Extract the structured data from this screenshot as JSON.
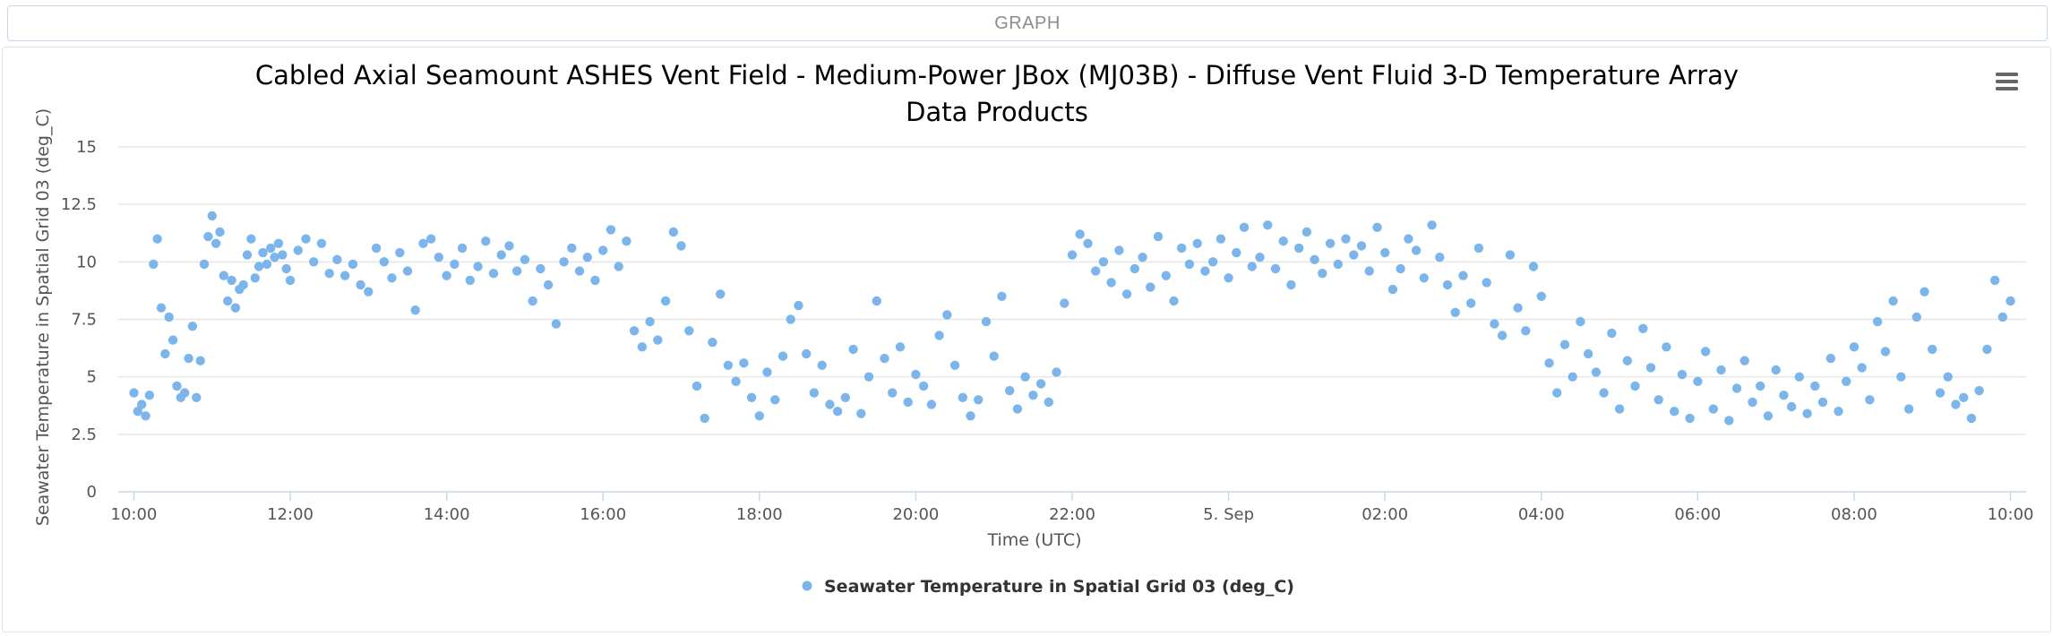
{
  "panel": {
    "header_label": "GRAPH"
  },
  "menu": {
    "icon": "hamburger-menu-icon"
  },
  "colors": {
    "series": "#7cb5ec",
    "grid": "#e6e6e6",
    "axis": "#ccd6eb"
  },
  "chart_data": {
    "type": "scatter",
    "title_line1": "Cabled Axial Seamount ASHES Vent Field - Medium-Power JBox (MJ03B) - Diffuse Vent Fluid 3-D Temperature Array",
    "title_line2": "Data Products",
    "xlabel": "Time (UTC)",
    "ylabel": "Seawater Temperature in Spatial Grid 03 (deg_C)",
    "ylim": [
      0,
      15
    ],
    "y_ticks": [
      "0",
      "2.5",
      "5",
      "7.5",
      "10",
      "12.5",
      "15"
    ],
    "y_tick_values": [
      0,
      2.5,
      5,
      7.5,
      10,
      12.5,
      15
    ],
    "xlim_hours": [
      9.8,
      34.2
    ],
    "x_ticks": [
      "10:00",
      "12:00",
      "14:00",
      "16:00",
      "18:00",
      "20:00",
      "22:00",
      "5. Sep",
      "02:00",
      "04:00",
      "06:00",
      "08:00",
      "10:00"
    ],
    "x_tick_hours": [
      10,
      12,
      14,
      16,
      18,
      20,
      22,
      24,
      26,
      28,
      30,
      32,
      34
    ],
    "grid": true,
    "legend_position": "bottom-center",
    "series": [
      {
        "name": "Seawater Temperature in Spatial Grid 03 (deg_C)",
        "color": "#7cb5ec",
        "points": [
          [
            10.0,
            4.3
          ],
          [
            10.05,
            3.5
          ],
          [
            10.1,
            3.8
          ],
          [
            10.15,
            3.3
          ],
          [
            10.2,
            4.2
          ],
          [
            10.25,
            9.9
          ],
          [
            10.3,
            11.0
          ],
          [
            10.35,
            8.0
          ],
          [
            10.4,
            6.0
          ],
          [
            10.45,
            7.6
          ],
          [
            10.5,
            6.6
          ],
          [
            10.55,
            4.6
          ],
          [
            10.6,
            4.1
          ],
          [
            10.65,
            4.3
          ],
          [
            10.7,
            5.8
          ],
          [
            10.75,
            7.2
          ],
          [
            10.8,
            4.1
          ],
          [
            10.85,
            5.7
          ],
          [
            10.9,
            9.9
          ],
          [
            10.95,
            11.1
          ],
          [
            11.0,
            12.0
          ],
          [
            11.05,
            10.8
          ],
          [
            11.1,
            11.3
          ],
          [
            11.15,
            9.4
          ],
          [
            11.2,
            8.3
          ],
          [
            11.25,
            9.2
          ],
          [
            11.3,
            8.0
          ],
          [
            11.35,
            8.8
          ],
          [
            11.4,
            9.0
          ],
          [
            11.45,
            10.3
          ],
          [
            11.5,
            11.0
          ],
          [
            11.55,
            9.3
          ],
          [
            11.6,
            9.8
          ],
          [
            11.65,
            10.4
          ],
          [
            11.7,
            9.9
          ],
          [
            11.75,
            10.6
          ],
          [
            11.8,
            10.2
          ],
          [
            11.85,
            10.8
          ],
          [
            11.9,
            10.3
          ],
          [
            11.95,
            9.7
          ],
          [
            12.0,
            9.2
          ],
          [
            12.1,
            10.5
          ],
          [
            12.2,
            11.0
          ],
          [
            12.3,
            10.0
          ],
          [
            12.4,
            10.8
          ],
          [
            12.5,
            9.5
          ],
          [
            12.6,
            10.1
          ],
          [
            12.7,
            9.4
          ],
          [
            12.8,
            9.9
          ],
          [
            12.9,
            9.0
          ],
          [
            13.0,
            8.7
          ],
          [
            13.1,
            10.6
          ],
          [
            13.2,
            10.0
          ],
          [
            13.3,
            9.3
          ],
          [
            13.4,
            10.4
          ],
          [
            13.5,
            9.6
          ],
          [
            13.6,
            7.9
          ],
          [
            13.7,
            10.8
          ],
          [
            13.8,
            11.0
          ],
          [
            13.9,
            10.2
          ],
          [
            14.0,
            9.4
          ],
          [
            14.1,
            9.9
          ],
          [
            14.2,
            10.6
          ],
          [
            14.3,
            9.2
          ],
          [
            14.4,
            9.8
          ],
          [
            14.5,
            10.9
          ],
          [
            14.6,
            9.5
          ],
          [
            14.7,
            10.3
          ],
          [
            14.8,
            10.7
          ],
          [
            14.9,
            9.6
          ],
          [
            15.0,
            10.1
          ],
          [
            15.1,
            8.3
          ],
          [
            15.2,
            9.7
          ],
          [
            15.3,
            9.0
          ],
          [
            15.4,
            7.3
          ],
          [
            15.5,
            10.0
          ],
          [
            15.6,
            10.6
          ],
          [
            15.7,
            9.6
          ],
          [
            15.8,
            10.2
          ],
          [
            15.9,
            9.2
          ],
          [
            16.0,
            10.5
          ],
          [
            16.1,
            11.4
          ],
          [
            16.2,
            9.8
          ],
          [
            16.3,
            10.9
          ],
          [
            16.4,
            7.0
          ],
          [
            16.5,
            6.3
          ],
          [
            16.6,
            7.4
          ],
          [
            16.7,
            6.6
          ],
          [
            16.8,
            8.3
          ],
          [
            16.9,
            11.3
          ],
          [
            17.0,
            10.7
          ],
          [
            17.1,
            7.0
          ],
          [
            17.2,
            4.6
          ],
          [
            17.3,
            3.2
          ],
          [
            17.4,
            6.5
          ],
          [
            17.5,
            8.6
          ],
          [
            17.6,
            5.5
          ],
          [
            17.7,
            4.8
          ],
          [
            17.8,
            5.6
          ],
          [
            17.9,
            4.1
          ],
          [
            18.0,
            3.3
          ],
          [
            18.1,
            5.2
          ],
          [
            18.2,
            4.0
          ],
          [
            18.3,
            5.9
          ],
          [
            18.4,
            7.5
          ],
          [
            18.5,
            8.1
          ],
          [
            18.6,
            6.0
          ],
          [
            18.7,
            4.3
          ],
          [
            18.8,
            5.5
          ],
          [
            18.9,
            3.8
          ],
          [
            19.0,
            3.5
          ],
          [
            19.1,
            4.1
          ],
          [
            19.2,
            6.2
          ],
          [
            19.3,
            3.4
          ],
          [
            19.4,
            5.0
          ],
          [
            19.5,
            8.3
          ],
          [
            19.6,
            5.8
          ],
          [
            19.7,
            4.3
          ],
          [
            19.8,
            6.3
          ],
          [
            19.9,
            3.9
          ],
          [
            20.0,
            5.1
          ],
          [
            20.1,
            4.6
          ],
          [
            20.2,
            3.8
          ],
          [
            20.3,
            6.8
          ],
          [
            20.4,
            7.7
          ],
          [
            20.5,
            5.5
          ],
          [
            20.6,
            4.1
          ],
          [
            20.7,
            3.3
          ],
          [
            20.8,
            4.0
          ],
          [
            20.9,
            7.4
          ],
          [
            21.0,
            5.9
          ],
          [
            21.1,
            8.5
          ],
          [
            21.2,
            4.4
          ],
          [
            21.3,
            3.6
          ],
          [
            21.4,
            5.0
          ],
          [
            21.5,
            4.2
          ],
          [
            21.6,
            4.7
          ],
          [
            21.7,
            3.9
          ],
          [
            21.8,
            5.2
          ],
          [
            21.9,
            8.2
          ],
          [
            22.0,
            10.3
          ],
          [
            22.1,
            11.2
          ],
          [
            22.2,
            10.8
          ],
          [
            22.3,
            9.6
          ],
          [
            22.4,
            10.0
          ],
          [
            22.5,
            9.1
          ],
          [
            22.6,
            10.5
          ],
          [
            22.7,
            8.6
          ],
          [
            22.8,
            9.7
          ],
          [
            22.9,
            10.2
          ],
          [
            23.0,
            8.9
          ],
          [
            23.1,
            11.1
          ],
          [
            23.2,
            9.4
          ],
          [
            23.3,
            8.3
          ],
          [
            23.4,
            10.6
          ],
          [
            23.5,
            9.9
          ],
          [
            23.6,
            10.8
          ],
          [
            23.7,
            9.6
          ],
          [
            23.8,
            10.0
          ],
          [
            23.9,
            11.0
          ],
          [
            24.0,
            9.3
          ],
          [
            24.1,
            10.4
          ],
          [
            24.2,
            11.5
          ],
          [
            24.3,
            9.8
          ],
          [
            24.4,
            10.2
          ],
          [
            24.5,
            11.6
          ],
          [
            24.6,
            9.7
          ],
          [
            24.7,
            10.9
          ],
          [
            24.8,
            9.0
          ],
          [
            24.9,
            10.6
          ],
          [
            25.0,
            11.3
          ],
          [
            25.1,
            10.1
          ],
          [
            25.2,
            9.5
          ],
          [
            25.3,
            10.8
          ],
          [
            25.4,
            9.9
          ],
          [
            25.5,
            11.0
          ],
          [
            25.6,
            10.3
          ],
          [
            25.7,
            10.7
          ],
          [
            25.8,
            9.6
          ],
          [
            25.9,
            11.5
          ],
          [
            26.0,
            10.4
          ],
          [
            26.1,
            8.8
          ],
          [
            26.2,
            9.7
          ],
          [
            26.3,
            11.0
          ],
          [
            26.4,
            10.5
          ],
          [
            26.5,
            9.3
          ],
          [
            26.6,
            11.6
          ],
          [
            26.7,
            10.2
          ],
          [
            26.8,
            9.0
          ],
          [
            26.9,
            7.8
          ],
          [
            27.0,
            9.4
          ],
          [
            27.1,
            8.2
          ],
          [
            27.2,
            10.6
          ],
          [
            27.3,
            9.1
          ],
          [
            27.4,
            7.3
          ],
          [
            27.5,
            6.8
          ],
          [
            27.6,
            10.3
          ],
          [
            27.7,
            8.0
          ],
          [
            27.8,
            7.0
          ],
          [
            27.9,
            9.8
          ],
          [
            28.0,
            8.5
          ],
          [
            28.1,
            5.6
          ],
          [
            28.2,
            4.3
          ],
          [
            28.3,
            6.4
          ],
          [
            28.4,
            5.0
          ],
          [
            28.5,
            7.4
          ],
          [
            28.6,
            6.0
          ],
          [
            28.7,
            5.2
          ],
          [
            28.8,
            4.3
          ],
          [
            28.9,
            6.9
          ],
          [
            29.0,
            3.6
          ],
          [
            29.1,
            5.7
          ],
          [
            29.2,
            4.6
          ],
          [
            29.3,
            7.1
          ],
          [
            29.4,
            5.4
          ],
          [
            29.5,
            4.0
          ],
          [
            29.6,
            6.3
          ],
          [
            29.7,
            3.5
          ],
          [
            29.8,
            5.1
          ],
          [
            29.9,
            3.2
          ],
          [
            30.0,
            4.8
          ],
          [
            30.1,
            6.1
          ],
          [
            30.2,
            3.6
          ],
          [
            30.3,
            5.3
          ],
          [
            30.4,
            3.1
          ],
          [
            30.5,
            4.5
          ],
          [
            30.6,
            5.7
          ],
          [
            30.7,
            3.9
          ],
          [
            30.8,
            4.6
          ],
          [
            30.9,
            3.3
          ],
          [
            31.0,
            5.3
          ],
          [
            31.1,
            4.2
          ],
          [
            31.2,
            3.7
          ],
          [
            31.3,
            5.0
          ],
          [
            31.4,
            3.4
          ],
          [
            31.5,
            4.6
          ],
          [
            31.6,
            3.9
          ],
          [
            31.7,
            5.8
          ],
          [
            31.8,
            3.5
          ],
          [
            31.9,
            4.8
          ],
          [
            32.0,
            6.3
          ],
          [
            32.1,
            5.4
          ],
          [
            32.2,
            4.0
          ],
          [
            32.3,
            7.4
          ],
          [
            32.4,
            6.1
          ],
          [
            32.5,
            8.3
          ],
          [
            32.6,
            5.0
          ],
          [
            32.7,
            3.6
          ],
          [
            32.8,
            7.6
          ],
          [
            32.9,
            8.7
          ],
          [
            33.0,
            6.2
          ],
          [
            33.1,
            4.3
          ],
          [
            33.2,
            5.0
          ],
          [
            33.3,
            3.8
          ],
          [
            33.4,
            4.1
          ],
          [
            33.5,
            3.2
          ],
          [
            33.6,
            4.4
          ],
          [
            33.7,
            6.2
          ],
          [
            33.8,
            9.2
          ],
          [
            33.9,
            7.6
          ],
          [
            34.0,
            8.3
          ]
        ]
      }
    ]
  }
}
